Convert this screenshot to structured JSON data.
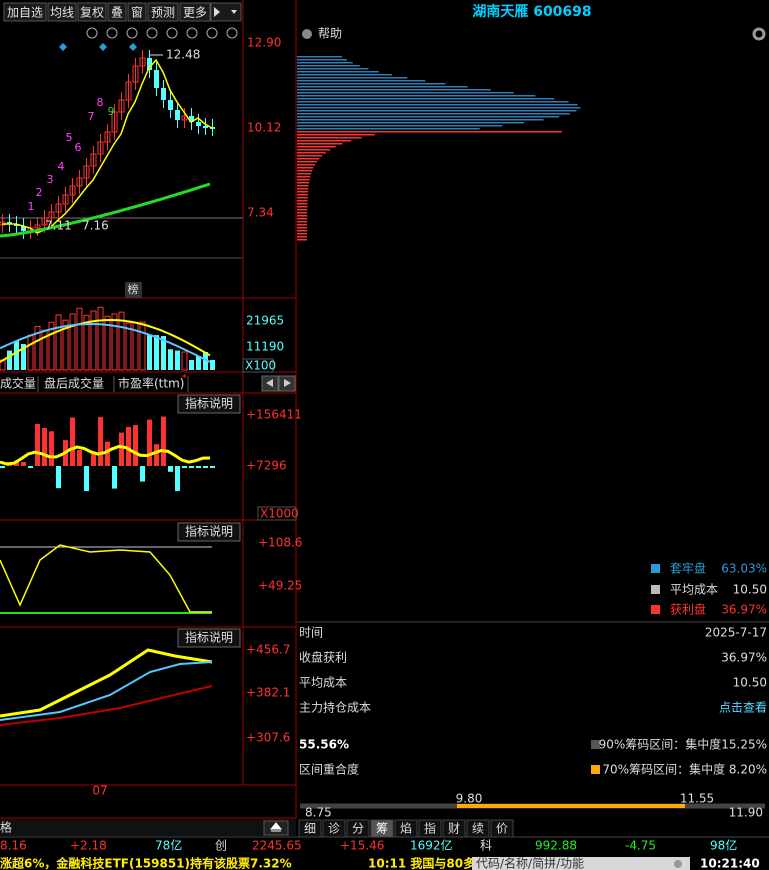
{
  "toolbar": {
    "buttons": [
      "加自选",
      "均线",
      "复权",
      "叠",
      "窗",
      "预测",
      "更多"
    ]
  },
  "price_chart": {
    "axis_labels": [
      "12.90",
      "10.12",
      "7.34"
    ],
    "high": "12.48",
    "lows": [
      "7.11",
      "7.16"
    ],
    "counts": [
      "1",
      "2",
      "3",
      "4",
      "5",
      "6",
      "7",
      "8",
      "9"
    ],
    "badge": "榜"
  },
  "volume_panel": {
    "axis_labels": [
      "21965",
      "11190"
    ],
    "unit": "X100"
  },
  "tabs": [
    "成交量",
    "盘后成交量",
    "市盈率(ttm)"
  ],
  "indicator_panels": [
    {
      "button": "指标说明",
      "axis_labels": [
        "+156411",
        "+7296"
      ],
      "unit": "X1000"
    },
    {
      "button": "指标说明",
      "axis_labels": [
        "+108.6",
        "+49.25"
      ]
    },
    {
      "button": "指标说明",
      "axis_labels": [
        "+456.7",
        "+382.1",
        "+307.6"
      ]
    }
  ],
  "date_label": "07",
  "chip_panel": {
    "title": "湖南天雁 600698",
    "help": "帮助",
    "legend": [
      {
        "label": "套牢盘",
        "value": "63.03%"
      },
      {
        "label": "平均成本",
        "value": "10.50"
      },
      {
        "label": "获利盘",
        "value": "36.97%"
      }
    ],
    "rows": [
      [
        "时间",
        "2025-7-17"
      ],
      [
        "收盘获利",
        "36.97%"
      ],
      [
        "平均成本",
        "10.50"
      ],
      [
        "主力持仓成本",
        "点击查看"
      ]
    ],
    "overlap": {
      "value": "55.56%",
      "label": "区间重合度"
    },
    "ranges": [
      "90%筹码区间：集中度15.25%",
      "70%筹码区间：集中度 8.20%"
    ],
    "range_bar": {
      "inner": [
        "9.80",
        "11.55"
      ],
      "outer": [
        "8.75",
        "11.90"
      ]
    },
    "tabs": [
      "细",
      "诊",
      "分",
      "筹",
      "焰",
      "指",
      "财",
      "续",
      "价"
    ]
  },
  "quote_bar": {
    "items": [
      "格",
      "8.16",
      "+2.18",
      "78亿",
      "创",
      "2245.65",
      "+15.46",
      "1692亿",
      "科",
      "992.88",
      "-4.75",
      "98亿"
    ]
  },
  "ticker": {
    "news": [
      "涨超6%，金融科技ETF(159851)持有该股票7.32%",
      "10:11 我国与80多"
    ],
    "search": "代码/名称/简拼/功能",
    "clock": "10:21:40"
  }
}
